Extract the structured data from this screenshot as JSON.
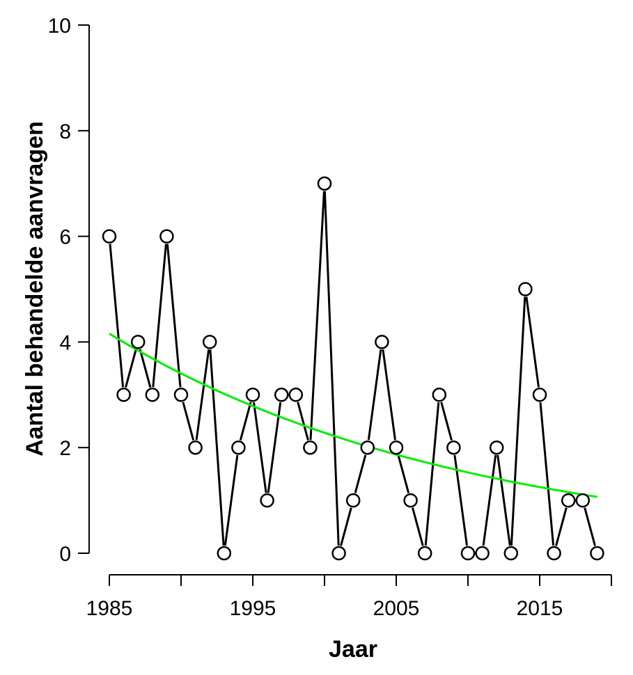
{
  "chart_data": {
    "type": "line",
    "xlabel": "Jaar",
    "ylabel": "Aantal behandelde aanvragen",
    "xlim": [
      1985,
      2020
    ],
    "ylim": [
      0,
      10
    ],
    "x_ticks": [
      1985,
      1990,
      1995,
      2000,
      2005,
      2010,
      2015,
      2020
    ],
    "x_tick_labels": [
      "1985",
      "1995",
      "2005",
      "2015"
    ],
    "y_ticks": [
      0,
      2,
      4,
      6,
      8,
      10
    ],
    "y_tick_labels": [
      "0",
      "2",
      "4",
      "6",
      "8",
      "10"
    ],
    "grid": false,
    "colors": {
      "series": "#000000",
      "trend": "#00ee00"
    },
    "series": [
      {
        "x": [
          1985,
          1986,
          1987,
          1988,
          1989,
          1990,
          1991,
          1992,
          1993,
          1994,
          1995,
          1996,
          1997,
          1998,
          1999,
          2000,
          2001,
          2002,
          2003,
          2004,
          2005,
          2006,
          2007,
          2008,
          2009,
          2010,
          2011,
          2012,
          2013,
          2014,
          2015,
          2016,
          2017,
          2018,
          2019
        ],
        "values": [
          6,
          3,
          4,
          3,
          6,
          3,
          2,
          4,
          0,
          2,
          3,
          1,
          3,
          3,
          2,
          7,
          0,
          1,
          2,
          4,
          2,
          1,
          0,
          3,
          2,
          0,
          0,
          2,
          0,
          5,
          3,
          0,
          1,
          1,
          0
        ]
      }
    ],
    "trend": {
      "x": [
        1985,
        1990,
        1995,
        2000,
        2005,
        2010,
        2015,
        2019
      ],
      "values": [
        4.15,
        3.4,
        2.78,
        2.27,
        1.88,
        1.55,
        1.26,
        1.05
      ]
    }
  }
}
